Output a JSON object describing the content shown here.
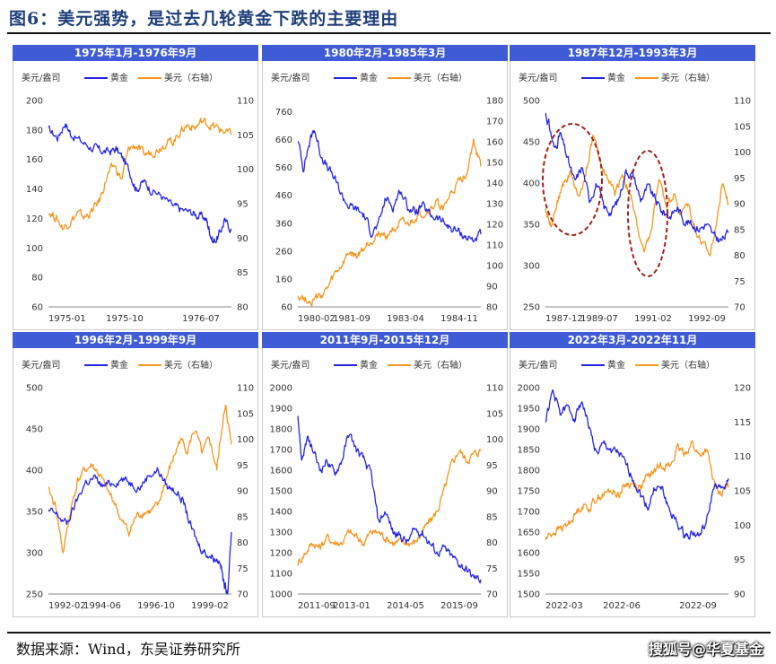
{
  "figure": {
    "title": "图6：美元强势，是过去几轮黄金下跌的主要理由",
    "source": "数据来源：Wind，东吴证券研究所",
    "watermark": "搜狐号@华夏基金"
  },
  "colors": {
    "gold": "#2424e6",
    "usd": "#f5961e",
    "header_bg": "#3f5bd6",
    "header_text": "#ffffff",
    "axis_text": "#333333"
  },
  "chart_data": [
    {
      "type": "line",
      "title": "1975年1月-1976年9月",
      "y_unit": "美元/盎司",
      "legend": [
        "黄金",
        "美元（右轴）"
      ],
      "x_ticks": [
        "1975-01",
        "1975-10",
        "1976-07"
      ],
      "ylim": [
        60,
        200
      ],
      "y_ticks": [
        60,
        80,
        100,
        120,
        140,
        160,
        180,
        200
      ],
      "y2lim": [
        80,
        110
      ],
      "y2_ticks": [
        80,
        85,
        90,
        95,
        100,
        105,
        110
      ],
      "series": [
        {
          "name": "黄金",
          "axis": "left",
          "x": [
            0,
            0.05,
            0.09,
            0.12,
            0.18,
            0.24,
            0.28,
            0.33,
            0.37,
            0.41,
            0.45,
            0.48,
            0.52,
            0.56,
            0.62,
            0.68,
            0.72,
            0.78,
            0.82,
            0.86,
            0.88,
            0.9,
            0.93,
            0.96,
            1.0
          ],
          "values": [
            180,
            175,
            185,
            178,
            172,
            168,
            166,
            165,
            167,
            160,
            150,
            140,
            145,
            140,
            135,
            128,
            126,
            124,
            122,
            120,
            112,
            104,
            108,
            118,
            113
          ]
        },
        {
          "name": "美元（右轴）",
          "axis": "right",
          "x": [
            0,
            0.04,
            0.08,
            0.12,
            0.16,
            0.2,
            0.24,
            0.28,
            0.32,
            0.36,
            0.4,
            0.44,
            0.48,
            0.52,
            0.56,
            0.6,
            0.64,
            0.68,
            0.72,
            0.76,
            0.8,
            0.84,
            0.88,
            0.92,
            0.96,
            1.0
          ],
          "values": [
            94,
            93,
            91.5,
            92.5,
            93.5,
            93,
            94,
            95.5,
            99,
            100.5,
            98.5,
            103,
            103.5,
            102,
            102.5,
            103,
            104,
            104,
            105.5,
            106.5,
            106,
            107,
            106.5,
            106,
            105.5,
            105
          ]
        }
      ]
    },
    {
      "type": "line",
      "title": "1980年2月-1985年3月",
      "y_unit": "美元/盎司",
      "legend": [
        "黄金",
        "美元（右轴）"
      ],
      "x_ticks": [
        "1980-02",
        "1981-09",
        "1983-04",
        "1984-11"
      ],
      "ylim": [
        60,
        800
      ],
      "y_ticks": [
        60,
        160,
        260,
        360,
        460,
        560,
        660,
        760
      ],
      "y2lim": [
        80,
        180
      ],
      "y2_ticks": [
        80,
        90,
        100,
        110,
        120,
        130,
        140,
        150,
        160,
        170,
        180
      ],
      "series": [
        {
          "name": "黄金",
          "axis": "left",
          "x": [
            0,
            0.03,
            0.06,
            0.09,
            0.12,
            0.16,
            0.2,
            0.24,
            0.28,
            0.32,
            0.36,
            0.4,
            0.44,
            0.48,
            0.52,
            0.56,
            0.6,
            0.64,
            0.68,
            0.72,
            0.76,
            0.8,
            0.84,
            0.88,
            0.92,
            0.96,
            1.0
          ],
          "values": [
            660,
            560,
            640,
            700,
            620,
            560,
            520,
            460,
            420,
            410,
            390,
            330,
            350,
            450,
            420,
            480,
            420,
            400,
            420,
            390,
            380,
            360,
            340,
            330,
            310,
            300,
            320
          ]
        },
        {
          "name": "美元（右轴）",
          "axis": "right",
          "x": [
            0,
            0.04,
            0.08,
            0.12,
            0.16,
            0.2,
            0.24,
            0.28,
            0.32,
            0.36,
            0.4,
            0.44,
            0.48,
            0.52,
            0.56,
            0.6,
            0.64,
            0.68,
            0.72,
            0.76,
            0.8,
            0.84,
            0.88,
            0.92,
            0.96,
            1.0
          ],
          "values": [
            86,
            84,
            83,
            85,
            88,
            95,
            100,
            106,
            104,
            108,
            112,
            116,
            114,
            118,
            120,
            119,
            123,
            125,
            127,
            130,
            128,
            135,
            140,
            145,
            160,
            148
          ]
        }
      ]
    },
    {
      "type": "line",
      "title": "1987年12月-1993年3月",
      "y_unit": "美元/盎司",
      "legend": [
        "黄金",
        "美元（右轴）"
      ],
      "x_ticks": [
        "1987-12",
        "1989-07",
        "1991-02",
        "1992-09"
      ],
      "ylim": [
        250,
        500
      ],
      "y_ticks": [
        250,
        300,
        350,
        400,
        450,
        500
      ],
      "y2lim": [
        70,
        110
      ],
      "y2_ticks": [
        70,
        75,
        80,
        85,
        90,
        95,
        100,
        105,
        110
      ],
      "series": [
        {
          "name": "黄金",
          "axis": "left",
          "x": [
            0,
            0.02,
            0.05,
            0.08,
            0.12,
            0.16,
            0.2,
            0.24,
            0.28,
            0.32,
            0.36,
            0.4,
            0.44,
            0.48,
            0.52,
            0.56,
            0.6,
            0.64,
            0.68,
            0.72,
            0.76,
            0.8,
            0.84,
            0.88,
            0.92,
            0.96,
            1.0
          ],
          "values": [
            485,
            470,
            440,
            460,
            430,
            400,
            420,
            380,
            400,
            370,
            365,
            380,
            415,
            410,
            380,
            395,
            380,
            365,
            360,
            370,
            355,
            350,
            345,
            350,
            335,
            330,
            340
          ]
        },
        {
          "name": "美元（右轴）",
          "axis": "right",
          "x": [
            0,
            0.03,
            0.06,
            0.1,
            0.14,
            0.18,
            0.22,
            0.26,
            0.3,
            0.34,
            0.38,
            0.42,
            0.46,
            0.5,
            0.54,
            0.58,
            0.62,
            0.66,
            0.7,
            0.74,
            0.78,
            0.82,
            0.86,
            0.9,
            0.94,
            0.97,
            1.0
          ],
          "values": [
            89,
            86,
            90,
            94,
            96,
            91,
            96,
            103,
            98,
            95,
            92,
            96,
            92,
            86,
            80,
            85,
            95,
            90,
            92,
            88,
            90,
            85,
            82,
            80,
            88,
            94,
            90
          ]
        }
      ]
    },
    {
      "type": "line",
      "title": "1996年2月-1999年9月",
      "y_unit": "美元/盎司",
      "legend": [
        "黄金",
        "美元（右轴）"
      ],
      "x_ticks": [
        "1992-02",
        "1994-06",
        "1996-10",
        "1999-02"
      ],
      "ylim": [
        250,
        500
      ],
      "y_ticks": [
        250,
        300,
        350,
        400,
        450,
        500
      ],
      "y2lim": [
        70,
        110
      ],
      "y2_ticks": [
        70,
        75,
        80,
        85,
        90,
        95,
        100,
        105,
        110
      ],
      "series": [
        {
          "name": "黄金",
          "axis": "left",
          "x": [
            0,
            0.05,
            0.1,
            0.15,
            0.2,
            0.25,
            0.3,
            0.35,
            0.4,
            0.45,
            0.5,
            0.55,
            0.6,
            0.65,
            0.7,
            0.74,
            0.78,
            0.82,
            0.86,
            0.9,
            0.94,
            0.96,
            0.98,
            1.0
          ],
          "values": [
            350,
            345,
            335,
            360,
            385,
            390,
            380,
            385,
            390,
            385,
            380,
            395,
            400,
            380,
            375,
            360,
            330,
            310,
            300,
            295,
            290,
            260,
            255,
            325
          ]
        },
        {
          "name": "美元（右轴）",
          "axis": "right",
          "x": [
            0,
            0.04,
            0.08,
            0.12,
            0.16,
            0.2,
            0.24,
            0.28,
            0.32,
            0.36,
            0.4,
            0.44,
            0.48,
            0.52,
            0.56,
            0.6,
            0.64,
            0.68,
            0.72,
            0.76,
            0.8,
            0.84,
            0.88,
            0.92,
            0.95,
            0.97,
            1.0
          ],
          "values": [
            90,
            87,
            78,
            86,
            92,
            94,
            95,
            93,
            90,
            88,
            84,
            82,
            85,
            86,
            86,
            87,
            92,
            96,
            100,
            98,
            102,
            97,
            100,
            94,
            103,
            106,
            99
          ]
        }
      ]
    },
    {
      "type": "line",
      "title": "2011年9月-2015年12月",
      "y_unit": "美元/盎司",
      "legend": [
        "黄金",
        "美元（右轴）"
      ],
      "x_ticks": [
        "2011-09",
        "2013-01",
        "2014-05",
        "2015-09"
      ],
      "ylim": [
        1000,
        2000
      ],
      "y_ticks": [
        1000,
        1100,
        1200,
        1300,
        1400,
        1500,
        1600,
        1700,
        1800,
        1900,
        2000
      ],
      "y2lim": [
        70,
        110
      ],
      "y2_ticks": [
        70,
        75,
        80,
        85,
        90,
        95,
        100,
        105,
        110
      ],
      "series": [
        {
          "name": "黄金",
          "axis": "left",
          "x": [
            0,
            0.02,
            0.05,
            0.08,
            0.12,
            0.16,
            0.2,
            0.24,
            0.28,
            0.32,
            0.36,
            0.4,
            0.44,
            0.48,
            0.52,
            0.56,
            0.6,
            0.64,
            0.68,
            0.72,
            0.76,
            0.8,
            0.84,
            0.88,
            0.92,
            0.96,
            1.0
          ],
          "values": [
            1880,
            1650,
            1750,
            1700,
            1600,
            1650,
            1580,
            1650,
            1780,
            1700,
            1650,
            1580,
            1350,
            1400,
            1300,
            1280,
            1250,
            1310,
            1300,
            1250,
            1200,
            1220,
            1180,
            1150,
            1120,
            1080,
            1070
          ]
        },
        {
          "name": "美元（右轴）",
          "axis": "right",
          "x": [
            0,
            0.04,
            0.08,
            0.12,
            0.16,
            0.2,
            0.24,
            0.28,
            0.32,
            0.36,
            0.4,
            0.44,
            0.48,
            0.52,
            0.56,
            0.6,
            0.64,
            0.68,
            0.72,
            0.76,
            0.8,
            0.84,
            0.88,
            0.92,
            0.96,
            1.0
          ],
          "values": [
            76,
            78,
            80,
            79,
            81,
            80,
            80,
            82,
            81,
            80,
            82,
            82,
            81,
            80,
            80,
            80,
            80,
            82,
            84,
            86,
            90,
            95,
            98,
            96,
            97,
            98
          ]
        }
      ]
    },
    {
      "type": "line",
      "title": "2022年3月-2022年11月",
      "y_unit": "美元/盎司",
      "legend": [
        "黄金",
        "美元（右轴）"
      ],
      "x_ticks": [
        "2022-03",
        "2022-06",
        "2022-09"
      ],
      "ylim": [
        1500,
        2000
      ],
      "y_ticks": [
        1500,
        1550,
        1600,
        1650,
        1700,
        1750,
        1800,
        1850,
        1900,
        1950,
        2000
      ],
      "y2lim": [
        90,
        120
      ],
      "y2_ticks": [
        90,
        95,
        100,
        105,
        110,
        115,
        120
      ],
      "series": [
        {
          "name": "黄金",
          "axis": "left",
          "x": [
            0,
            0.04,
            0.08,
            0.12,
            0.16,
            0.2,
            0.24,
            0.28,
            0.32,
            0.36,
            0.4,
            0.44,
            0.48,
            0.52,
            0.56,
            0.6,
            0.64,
            0.68,
            0.72,
            0.76,
            0.8,
            0.84,
            0.88,
            0.92,
            0.96,
            1.0
          ],
          "values": [
            1920,
            1990,
            1940,
            1950,
            1930,
            1970,
            1900,
            1840,
            1860,
            1850,
            1840,
            1810,
            1780,
            1740,
            1710,
            1760,
            1750,
            1700,
            1670,
            1640,
            1650,
            1640,
            1670,
            1760,
            1750,
            1780
          ]
        },
        {
          "name": "美元（右轴）",
          "axis": "right",
          "x": [
            0,
            0.04,
            0.08,
            0.12,
            0.16,
            0.2,
            0.24,
            0.28,
            0.32,
            0.36,
            0.4,
            0.44,
            0.48,
            0.52,
            0.56,
            0.6,
            0.64,
            0.68,
            0.72,
            0.76,
            0.8,
            0.84,
            0.88,
            0.92,
            0.96,
            1.0
          ],
          "values": [
            98,
            99,
            99.5,
            100,
            101.5,
            103,
            102.5,
            104,
            104.5,
            105,
            104.5,
            106,
            106,
            105.5,
            107,
            108,
            109,
            108.5,
            111,
            110.5,
            112,
            110,
            111,
            106,
            104.5,
            105.5
          ]
        }
      ]
    }
  ]
}
